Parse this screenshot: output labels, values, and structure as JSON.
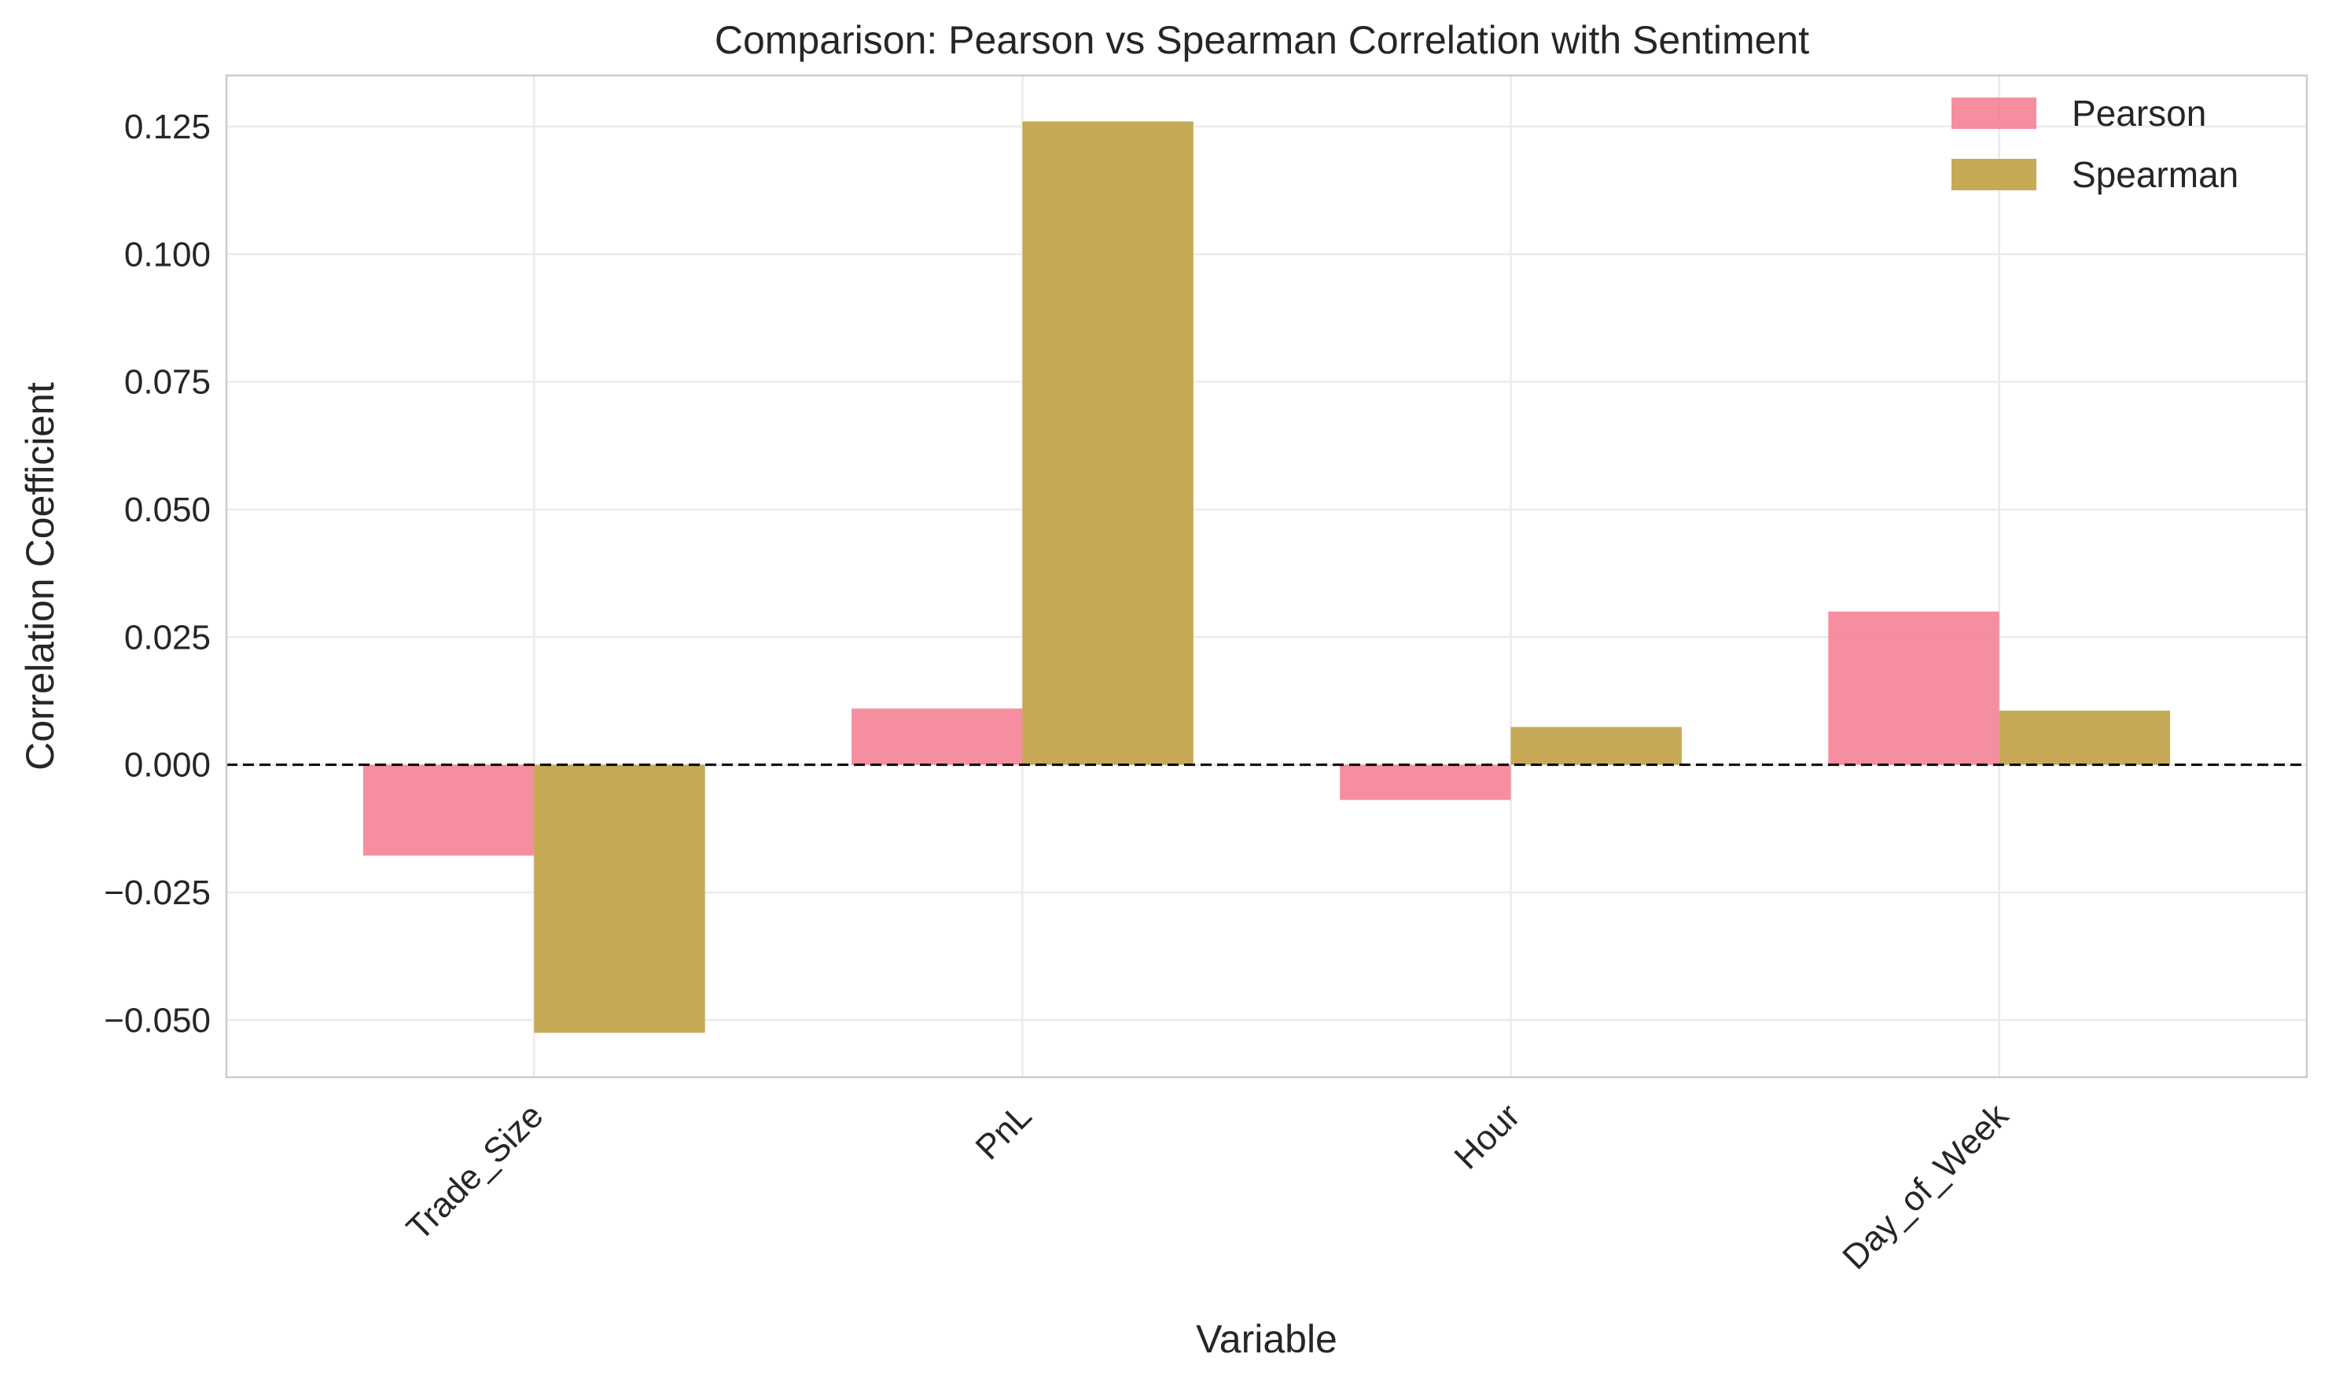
{
  "chart_data": {
    "type": "bar",
    "title": "Comparison: Pearson vs Spearman Correlation with Sentiment",
    "xlabel": "Variable",
    "ylabel": "Correlation Coefficient",
    "categories": [
      "Trade_Size",
      "PnL",
      "Hour",
      "Day_of_Week"
    ],
    "series": [
      {
        "name": "Pearson",
        "color": "#f37b8f",
        "values": [
          -0.0178,
          0.011,
          -0.0069,
          0.03
        ]
      },
      {
        "name": "Spearman",
        "color": "#c3a44e",
        "values": [
          -0.0525,
          0.126,
          0.0074,
          0.0106
        ]
      }
    ],
    "ylim": [
      -0.0612,
      0.135
    ],
    "yticks": [
      -0.05,
      -0.025,
      0.0,
      0.025,
      0.05,
      0.075,
      0.1,
      0.125
    ],
    "ytick_labels": [
      "−0.050",
      "−0.025",
      "0.000",
      "0.025",
      "0.050",
      "0.075",
      "0.100",
      "0.125"
    ],
    "grid": true,
    "zero_line": "dashed",
    "legend": "top-right"
  }
}
